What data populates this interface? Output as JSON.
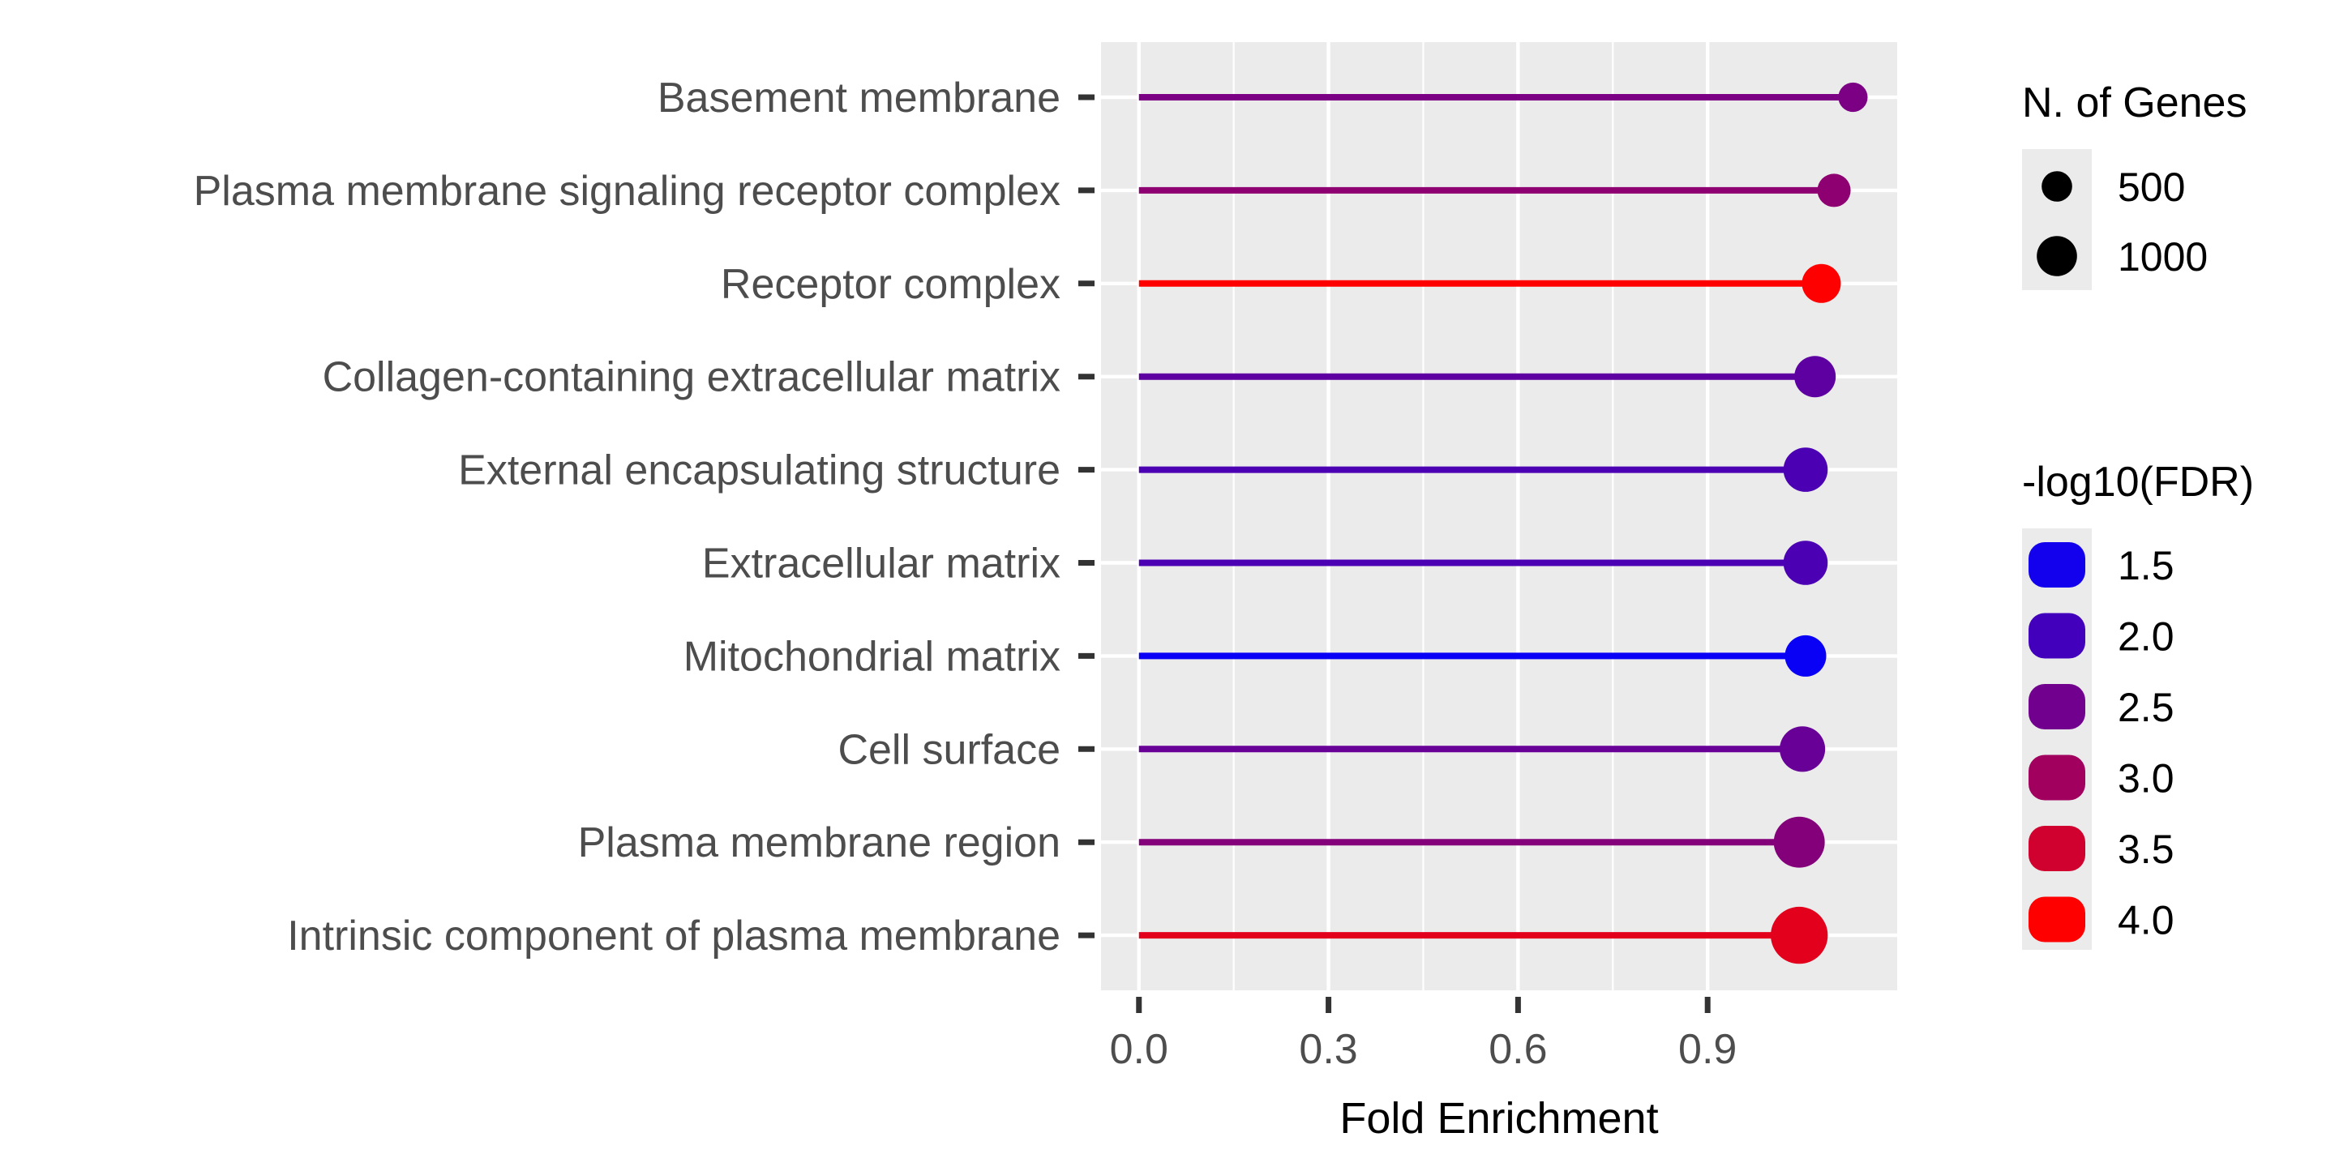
{
  "chart_data": {
    "type": "lollipop",
    "xlabel": "Fold Enrichment",
    "ylabel": "",
    "xlim": [
      -0.06,
      1.2
    ],
    "xticks": [
      0.0,
      0.3,
      0.6,
      0.9
    ],
    "xtick_labels": [
      "0.0",
      "0.3",
      "0.6",
      "0.9"
    ],
    "grid": true,
    "legend_position": "right",
    "categories": [
      "Basement membrane",
      "Plasma membrane signaling receptor complex",
      "Receptor complex",
      "Collagen-containing extracellular matrix",
      "External encapsulating structure",
      "Extracellular matrix",
      "Mitochondrial matrix",
      "Cell surface",
      "Plasma membrane region",
      "Intrinsic component of plasma membrane"
    ],
    "fold_enrichment": [
      1.13,
      1.1,
      1.08,
      1.07,
      1.055,
      1.055,
      1.055,
      1.05,
      1.045,
      1.045
    ],
    "n_genes": [
      180,
      260,
      400,
      470,
      560,
      560,
      470,
      600,
      800,
      1050
    ],
    "neg_log10_fdr": [
      2.6,
      2.8,
      4.0,
      2.3,
      2.1,
      2.1,
      1.4,
      2.4,
      2.7,
      3.7
    ],
    "legend_size": {
      "title": "N. of Genes",
      "entries": [
        {
          "label": "500",
          "value": 500
        },
        {
          "label": "1000",
          "value": 1000
        }
      ]
    },
    "legend_color": {
      "title": "-log10(FDR)",
      "low_color": "#0000ff",
      "high_color": "#ff0000",
      "range": [
        1.3,
        4.0
      ],
      "entries": [
        {
          "label": "1.5",
          "value": 1.5
        },
        {
          "label": "2.0",
          "value": 2.0
        },
        {
          "label": "2.5",
          "value": 2.5
        },
        {
          "label": "3.0",
          "value": 3.0
        },
        {
          "label": "3.5",
          "value": 3.5
        },
        {
          "label": "4.0",
          "value": 4.0
        }
      ]
    },
    "colors": {
      "panel_background": "#ebebeb",
      "grid": "#ffffff",
      "tick": "#333333"
    }
  }
}
